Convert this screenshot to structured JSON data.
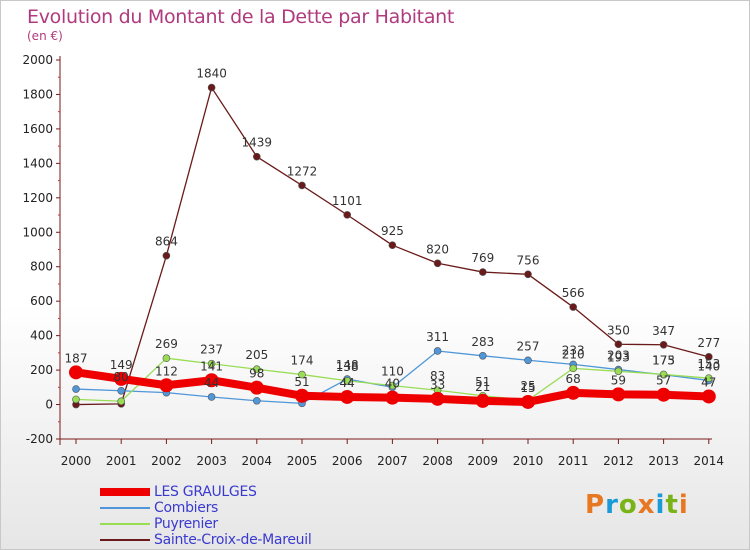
{
  "title": "Evolution du Montant de la Dette par Habitant",
  "subtitle": "(en €)",
  "logo_text": "Proxiti",
  "logo_colors": [
    "#e87722",
    "#1a9ad6",
    "#7ab317",
    "#e87722",
    "#1a9ad6",
    "#7ab317",
    "#e87722"
  ],
  "chart_data": {
    "type": "line",
    "x": [
      "2000",
      "2001",
      "2002",
      "2003",
      "2004",
      "2005",
      "2006",
      "2007",
      "2008",
      "2009",
      "2010",
      "2011",
      "2012",
      "2013",
      "2014"
    ],
    "y_ticks": [
      "2000",
      "1800",
      "1600",
      "1400",
      "1200",
      "1000",
      "800",
      "600",
      "400",
      "200",
      "0",
      "-200"
    ],
    "ylim": [
      -200,
      2000
    ],
    "grid": false,
    "legend_position": "bottom-left",
    "series": [
      {
        "name": "LES GRAULGES",
        "color": "#ee0000",
        "values": [
          187,
          149,
          112,
          141,
          98,
          51,
          44,
          40,
          33,
          21,
          15,
          68,
          59,
          57,
          47
        ],
        "labels": [
          "187",
          "149",
          "112",
          "141",
          "98",
          "51",
          "44",
          "40",
          "33",
          "21",
          "15",
          "68",
          "59",
          "57",
          "47"
        ]
      },
      {
        "name": "Combiers",
        "color": "#4f97d8",
        "values": [
          90,
          80,
          69,
          44,
          22,
          7,
          148,
          100,
          311,
          283,
          257,
          233,
          203,
          173,
          140
        ],
        "labels": [
          "",
          "80",
          "",
          "44",
          "",
          "",
          "148",
          "",
          "311",
          "283",
          "257",
          "233",
          "203",
          "173",
          "140"
        ]
      },
      {
        "name": "Puyrenier",
        "color": "#99dd55",
        "values": [
          30,
          19,
          269,
          237,
          205,
          174,
          138,
          110,
          83,
          51,
          25,
          210,
          193,
          175,
          153
        ],
        "labels": [
          "",
          "",
          "269",
          "237",
          "205",
          "174",
          "138",
          "110",
          "83",
          "51",
          "25",
          "210",
          "193",
          "175",
          "153"
        ]
      },
      {
        "name": "Sainte-Croix-de-Mareuil",
        "color": "#6a1a1a",
        "values": [
          0,
          4,
          864,
          1840,
          1439,
          1272,
          1101,
          925,
          820,
          769,
          756,
          566,
          350,
          347,
          277
        ],
        "labels": [
          "",
          "",
          "864",
          "1840",
          "1439",
          "1272",
          "1101",
          "925",
          "820",
          "769",
          "756",
          "566",
          "350",
          "347",
          "277"
        ]
      }
    ]
  }
}
